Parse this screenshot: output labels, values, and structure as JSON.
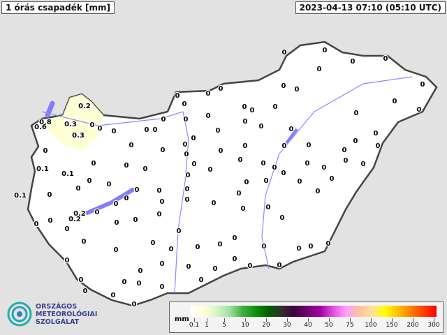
{
  "header": {
    "title": "1 órás csapadék [mm]",
    "timestamp": "2023-04-13 07:10 (05:10 UTC)"
  },
  "legend": {
    "unit": "mm",
    "ticks": [
      "0.1",
      "1",
      "5",
      "10",
      "20",
      "30",
      "40",
      "50",
      "75",
      "100",
      "150",
      "200",
      "300"
    ],
    "colors": [
      "#ffffff",
      "#ffffd8",
      "#d8f5c8",
      "#a0e0a0",
      "#40b040",
      "#109010",
      "#006000",
      "#303030",
      "#400040",
      "#700070",
      "#a000a0",
      "#e050e0",
      "#ffa0ff",
      "#ffc0a0",
      "#ffe0a0",
      "#ffff00",
      "#ffc000",
      "#ff8000",
      "#ff4000",
      "#ff0000"
    ]
  },
  "logo": {
    "line1": "ORSZÁGOS",
    "line2": "METEOROLÓGIAI",
    "line3": "SZOLGÁLAT"
  },
  "colors": {
    "background": "#e2e2e2",
    "country": "#ffffff",
    "lake": "#8080ff",
    "river": "#8a8aff",
    "border": "#444444",
    "light_rain": "#ffffd0"
  },
  "stations": [
    "0.2",
    "0.8",
    "0.6",
    "0.3",
    "0.3",
    "0",
    "0",
    "0",
    "0.1",
    "0.1",
    "0.1",
    "0",
    "0",
    "0",
    "0",
    "0",
    "0",
    "0",
    "0",
    "0",
    "0",
    "0",
    "0",
    "0",
    "0",
    "0",
    "0",
    "0",
    "0.2",
    "0.2",
    "0",
    "0",
    "0",
    "0",
    "0",
    "0",
    "0",
    "0",
    "0",
    "0",
    "0",
    "0",
    "0",
    "0",
    "0",
    "0",
    "0",
    "0",
    "0",
    "0",
    "0",
    "0",
    "0",
    "0",
    "0",
    "0",
    "0",
    "0",
    "0",
    "0",
    "0",
    "0",
    "0",
    "0",
    "0",
    "0",
    "0",
    "0",
    "0",
    "0",
    "0",
    "0",
    "0",
    "0",
    "0",
    "0",
    "0",
    "0",
    "0",
    "0",
    "0",
    "0",
    "0",
    "0",
    "0",
    "0",
    "0",
    "0",
    "0",
    "0",
    "0",
    "0",
    "0",
    "0",
    "0",
    "0",
    "0",
    "0",
    "0",
    "0",
    "0",
    "0",
    "0",
    "0",
    "0",
    "0",
    "0",
    "0",
    "0",
    "0",
    "0",
    "0",
    "0",
    "0",
    "0",
    "0",
    "0",
    "0",
    "0",
    "0",
    "0",
    "0",
    "0",
    "0",
    "0"
  ]
}
